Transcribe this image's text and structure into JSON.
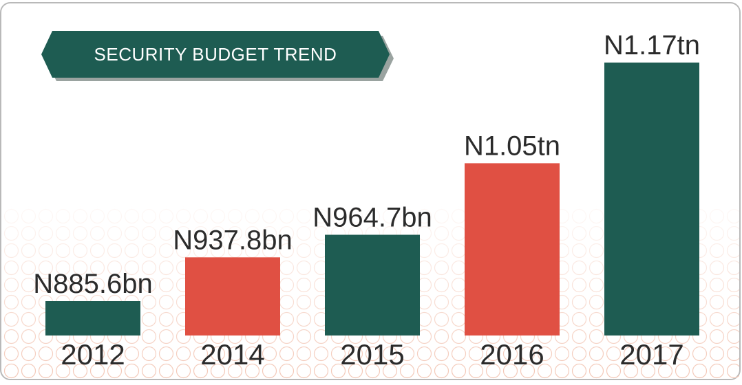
{
  "chart_data": {
    "type": "bar",
    "title": "SECURITY BUDGET TREND",
    "categories": [
      "2012",
      "2014",
      "2015",
      "2016",
      "2017"
    ],
    "values": [
      885.6,
      937.8,
      964.7,
      1050,
      1170
    ],
    "value_labels": [
      "N885.6bn",
      "N937.8bn",
      "N964.7bn",
      "N1.05tn",
      "N1.17tn"
    ],
    "colors": [
      "#1e5c52",
      "#e05043",
      "#1e5c52",
      "#e05043",
      "#1e5c52"
    ]
  }
}
